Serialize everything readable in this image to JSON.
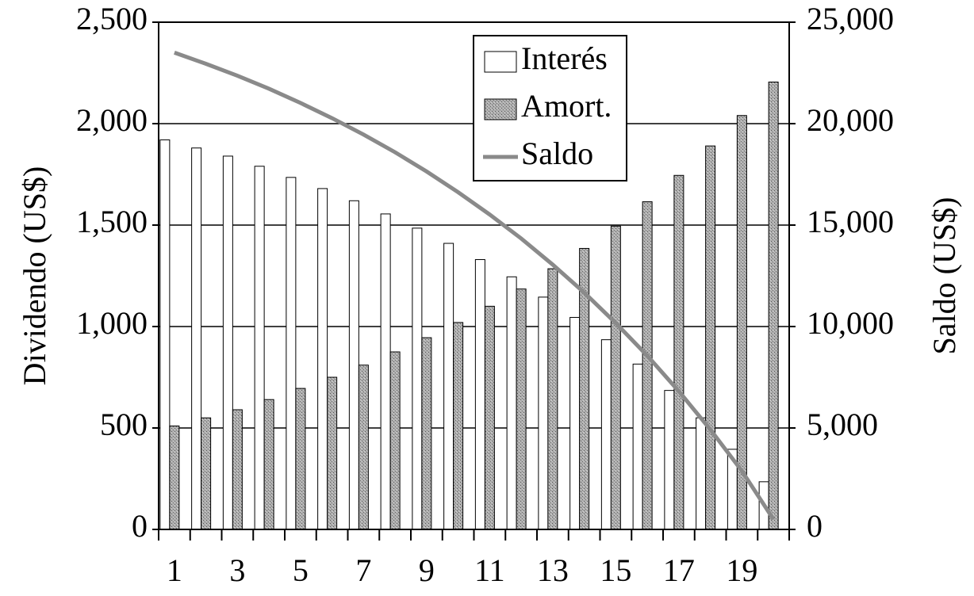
{
  "chart_data": {
    "type": "bar",
    "y_label": "Dividendo (US$)",
    "y2_label": "Saldo (US$)",
    "categories": [
      "1",
      null,
      "3",
      null,
      "5",
      null,
      "7",
      null,
      "9",
      null,
      "11",
      null,
      "13",
      null,
      "15",
      null,
      "17",
      null,
      "19",
      null
    ],
    "series": [
      {
        "name": "Interés",
        "color": "#ffffff",
        "type": "bar",
        "values": [
          1920,
          1880,
          1840,
          1790,
          1735,
          1680,
          1620,
          1555,
          1485,
          1410,
          1330,
          1245,
          1145,
          1045,
          935,
          815,
          685,
          550,
          395,
          235
        ]
      },
      {
        "name": "Amort.",
        "color": "#9a9a9a",
        "type": "bar",
        "values": [
          510,
          550,
          590,
          640,
          695,
          750,
          810,
          875,
          945,
          1020,
          1100,
          1185,
          1285,
          1385,
          1495,
          1615,
          1745,
          1890,
          2040,
          2205
        ]
      },
      {
        "name": "Saldo",
        "color": "#8a8a8a",
        "type": "line",
        "axis": "y2",
        "values": [
          23500,
          22950,
          22360,
          21720,
          21020,
          20270,
          19460,
          18590,
          17640,
          16620,
          15520,
          14340,
          13050,
          11670,
          10170,
          8560,
          6810,
          4920,
          2880,
          500
        ]
      }
    ],
    "ylim": [
      0,
      2500
    ],
    "yticks": [
      0,
      500,
      {
        "value": 1000,
        "label": "1,000"
      },
      {
        "value": 1500,
        "label": "1,500"
      },
      {
        "value": 2000,
        "label": "2,000"
      },
      {
        "value": 2500,
        "label": "2,500"
      }
    ],
    "y2lim": [
      0,
      25000
    ],
    "y2ticks": [
      0,
      {
        "value": 5000,
        "label": "5,000"
      },
      {
        "value": 10000,
        "label": "10,000"
      },
      {
        "value": 15000,
        "label": "15,000"
      },
      {
        "value": 20000,
        "label": "20,000"
      },
      {
        "value": 25000,
        "label": "25,000"
      }
    ],
    "grid": true,
    "legend": "upper center"
  }
}
